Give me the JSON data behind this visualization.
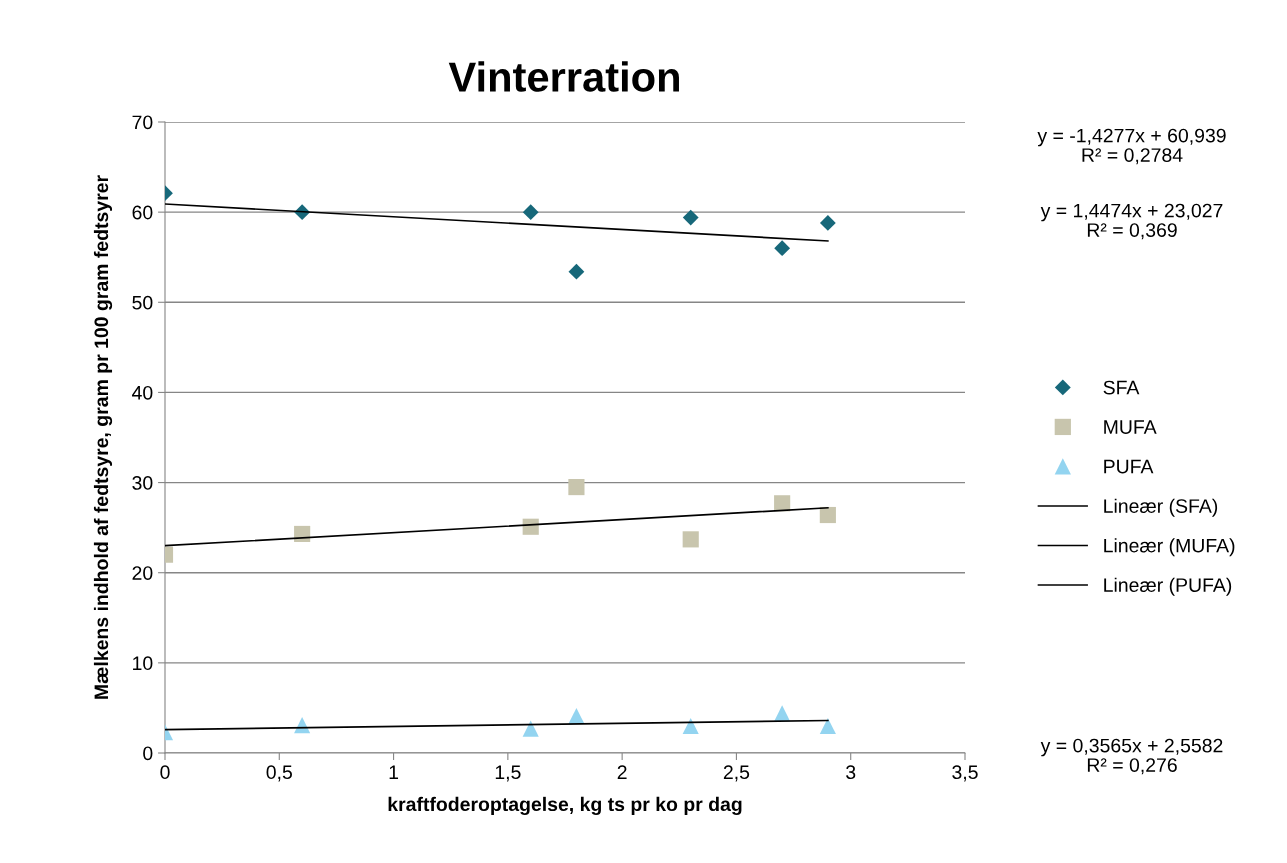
{
  "chart_data": {
    "type": "scatter",
    "title": "Vinterration",
    "xlabel": "kraftfoderoptagelse, kg ts pr ko pr dag",
    "ylabel": "Mælkens indhold af fedtsyre, gram pr 100 gram fedtsyrer",
    "xlim": [
      0,
      3.5
    ],
    "xticks": [
      0,
      {
        "value": 0.5,
        "label": "0,5"
      },
      1,
      {
        "value": 1.5,
        "label": "1,5"
      },
      2,
      {
        "value": 2.5,
        "label": "2,5"
      },
      3,
      {
        "value": 3.5,
        "label": "3,5"
      }
    ],
    "ylim": [
      0,
      70
    ],
    "yticks": [
      0,
      10,
      20,
      30,
      40,
      50,
      60,
      70
    ],
    "grid": "y",
    "legend": "right",
    "series": [
      {
        "name": "SFA",
        "marker": "diamond",
        "color": "#17687a",
        "x": [
          0,
          0.6,
          1.6,
          1.8,
          2.3,
          2.7,
          2.9
        ],
        "values": [
          62.1,
          60.0,
          60.0,
          53.4,
          59.4,
          56.0,
          58.8
        ]
      },
      {
        "name": "MUFA",
        "marker": "square",
        "color": "#c8c5ad",
        "x": [
          0,
          0.6,
          1.6,
          1.8,
          2.3,
          2.7,
          2.9
        ],
        "values": [
          22.0,
          24.3,
          25.1,
          29.5,
          23.7,
          27.7,
          26.4
        ]
      },
      {
        "name": "PUFA",
        "marker": "triangle",
        "color": "#93d4f0",
        "x": [
          0,
          0.6,
          1.6,
          1.8,
          2.3,
          2.7,
          2.9
        ],
        "values": [
          2.3,
          3.1,
          2.7,
          4.1,
          3.0,
          4.4,
          3.0
        ]
      },
      {
        "name": "Lineær (SFA)",
        "type": "line",
        "marker": "none",
        "color": "#000000",
        "x": [
          0,
          2.9
        ],
        "values": [
          60.9,
          56.8
        ]
      },
      {
        "name": "Lineær (MUFA)",
        "type": "line",
        "marker": "none",
        "color": "#000000",
        "x": [
          0,
          2.9
        ],
        "values": [
          23.0,
          27.2
        ]
      },
      {
        "name": "Lineær (PUFA)",
        "type": "line",
        "marker": "none",
        "color": "#000000",
        "x": [
          0,
          2.9
        ],
        "values": [
          2.6,
          3.6
        ]
      }
    ],
    "annotations": [
      "y = -1,4277x + 60,939\nR² = 0,2784",
      "y = 1,4474x + 23,027\nR² = 0,369",
      "y = 0,3565x + 2,5582\nR² = 0,276"
    ]
  }
}
